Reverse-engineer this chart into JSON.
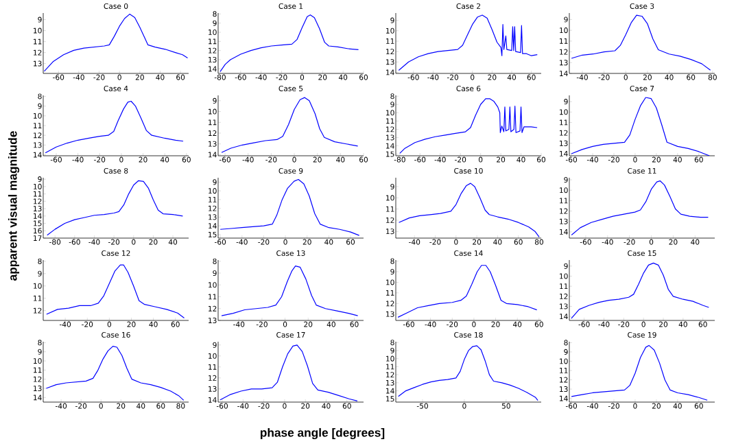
{
  "chart_data": [
    {
      "type": "line",
      "title": "Case 0",
      "color": "#0000ff",
      "xlim": [
        -75,
        68
      ],
      "ylim": [
        13.9,
        8.4
      ],
      "xticks": [
        -60,
        -40,
        -20,
        0,
        20,
        40,
        60
      ],
      "yticks": [
        9,
        10,
        11,
        12,
        13
      ],
      "x": [
        -74,
        -65,
        -55,
        -45,
        -35,
        -25,
        -15,
        -10,
        -5,
        0,
        5,
        10,
        15,
        20,
        25,
        28,
        35,
        45,
        55,
        62,
        67
      ],
      "values": [
        13.7,
        12.8,
        12.2,
        11.8,
        11.6,
        11.5,
        11.4,
        11.3,
        10.5,
        9.6,
        8.9,
        8.5,
        8.8,
        9.7,
        10.7,
        11.3,
        11.5,
        11.7,
        12.0,
        12.2,
        12.5
      ]
    },
    {
      "type": "line",
      "title": "Case 1",
      "color": "#0000ff",
      "xlim": [
        -82,
        60
      ],
      "ylim": [
        14.5,
        7.9
      ],
      "xticks": [
        -80,
        -60,
        -40,
        -20,
        0,
        20,
        40,
        60
      ],
      "yticks": [
        8,
        9,
        10,
        11,
        12,
        13,
        14
      ],
      "x": [
        -80,
        -75,
        -70,
        -60,
        -50,
        -40,
        -30,
        -20,
        -10,
        -5,
        0,
        5,
        8,
        12,
        17,
        22,
        26,
        35,
        45,
        55
      ],
      "values": [
        14.3,
        13.5,
        13.0,
        12.4,
        12.0,
        11.7,
        11.5,
        11.4,
        11.3,
        10.8,
        9.5,
        8.3,
        8.1,
        8.4,
        9.6,
        11.1,
        11.5,
        11.6,
        11.8,
        11.9
      ]
    },
    {
      "type": "line",
      "title": "Case 2",
      "color": "#0000ff",
      "xlim": [
        -78,
        70
      ],
      "ylim": [
        14.1,
        8.3
      ],
      "xticks": [
        -60,
        -40,
        -20,
        0,
        20,
        40,
        60
      ],
      "yticks": [
        9,
        10,
        11,
        12,
        13,
        14
      ],
      "x": [
        -75,
        -65,
        -55,
        -45,
        -35,
        -25,
        -15,
        -10,
        -5,
        0,
        5,
        10,
        15,
        20,
        25,
        29,
        30,
        31,
        32,
        34,
        35,
        40,
        41,
        42,
        43,
        44,
        49,
        50,
        51,
        55,
        60,
        66
      ],
      "values": [
        13.8,
        13.0,
        12.5,
        12.2,
        12.0,
        11.9,
        11.8,
        11.4,
        10.4,
        9.4,
        8.7,
        8.5,
        8.8,
        9.9,
        11.1,
        11.6,
        12.4,
        9.4,
        11.8,
        10.5,
        11.8,
        11.9,
        9.6,
        11.9,
        9.6,
        12.0,
        12.1,
        9.5,
        12.2,
        12.2,
        12.4,
        12.3
      ]
    },
    {
      "type": "line",
      "title": "Case 3",
      "color": "#0000ff",
      "xlim": [
        -52,
        82
      ],
      "ylim": [
        14,
        8.4
      ],
      "xticks": [
        -40,
        -20,
        0,
        20,
        40,
        60,
        80
      ],
      "yticks": [
        9,
        10,
        11,
        12,
        13,
        14
      ],
      "x": [
        -50,
        -40,
        -30,
        -20,
        -10,
        -5,
        0,
        5,
        10,
        15,
        20,
        25,
        30,
        40,
        50,
        60,
        70,
        78
      ],
      "values": [
        12.6,
        12.3,
        12.2,
        12.0,
        11.9,
        11.4,
        10.4,
        9.3,
        8.6,
        8.7,
        9.4,
        10.8,
        11.8,
        12.2,
        12.4,
        12.7,
        13.1,
        13.7
      ]
    },
    {
      "type": "line",
      "title": "Case 4",
      "color": "#0000ff",
      "xlim": [
        -72,
        62
      ],
      "ylim": [
        14.1,
        7.9
      ],
      "xticks": [
        -60,
        -40,
        -20,
        0,
        20,
        40,
        60
      ],
      "yticks": [
        8,
        9,
        10,
        11,
        12,
        13,
        14
      ],
      "x": [
        -70,
        -60,
        -50,
        -40,
        -30,
        -20,
        -12,
        -7,
        -3,
        2,
        6,
        9,
        13,
        18,
        23,
        28,
        40,
        50,
        57
      ],
      "values": [
        13.8,
        13.2,
        12.8,
        12.5,
        12.3,
        12.1,
        12.0,
        11.6,
        10.5,
        9.3,
        8.6,
        8.5,
        9.0,
        10.2,
        11.5,
        12.0,
        12.3,
        12.5,
        12.6
      ]
    },
    {
      "type": "line",
      "title": "Case 5",
      "color": "#0000ff",
      "xlim": [
        -66,
        60
      ],
      "ylim": [
        14.1,
        8.5
      ],
      "xticks": [
        -60,
        -40,
        -20,
        0,
        20,
        40,
        60
      ],
      "yticks": [
        9,
        10,
        11,
        12,
        13,
        14
      ],
      "x": [
        -63,
        -55,
        -45,
        -35,
        -25,
        -15,
        -10,
        -5,
        0,
        5,
        9,
        13,
        18,
        22,
        26,
        35,
        45,
        55
      ],
      "values": [
        13.8,
        13.4,
        13.1,
        12.9,
        12.7,
        12.6,
        12.3,
        11.2,
        9.8,
        8.9,
        8.7,
        9.0,
        10.2,
        11.6,
        12.4,
        12.8,
        13.0,
        13.2
      ]
    },
    {
      "type": "line",
      "title": "Case 6",
      "color": "#0000ff",
      "xlim": [
        -84,
        60
      ],
      "ylim": [
        15.2,
        7.9
      ],
      "xticks": [
        -80,
        -60,
        -40,
        -20,
        0,
        20,
        40,
        60
      ],
      "yticks": [
        8,
        9,
        10,
        11,
        12,
        13,
        14,
        15
      ],
      "x": [
        -80,
        -75,
        -65,
        -55,
        -45,
        -35,
        -25,
        -15,
        -10,
        -5,
        0,
        5,
        9,
        13,
        17,
        19,
        19.5,
        21,
        23,
        24,
        25,
        28,
        29,
        30,
        33,
        34,
        35,
        39,
        40,
        41,
        43,
        50,
        56
      ],
      "values": [
        14.9,
        14.3,
        13.6,
        13.2,
        12.9,
        12.7,
        12.5,
        12.3,
        11.8,
        10.3,
        9.0,
        8.3,
        8.3,
        8.6,
        9.3,
        10.0,
        12.4,
        11.6,
        12.3,
        9.3,
        12.2,
        12.0,
        9.3,
        12.3,
        12.0,
        9.2,
        12.4,
        12.2,
        9.3,
        12.4,
        11.7,
        11.7,
        11.8
      ]
    },
    {
      "type": "line",
      "title": "Case 7",
      "color": "#0000ff",
      "xlim": [
        -62,
        75
      ],
      "ylim": [
        14.2,
        8.4
      ],
      "xticks": [
        -60,
        -40,
        -20,
        0,
        20,
        40,
        60
      ],
      "yticks": [
        9,
        10,
        11,
        12,
        13,
        14
      ],
      "x": [
        -60,
        -50,
        -40,
        -30,
        -20,
        -10,
        -5,
        0,
        5,
        10,
        15,
        20,
        25,
        30,
        40,
        50,
        60,
        70
      ],
      "values": [
        14.0,
        13.6,
        13.3,
        13.1,
        13.0,
        12.9,
        12.2,
        10.7,
        9.4,
        8.6,
        8.7,
        9.6,
        11.2,
        12.9,
        13.3,
        13.5,
        13.8,
        14.2
      ]
    },
    {
      "type": "line",
      "title": "Case 8",
      "ylabel": "apparent visual magnitude",
      "color": "#0000ff",
      "xlim": [
        -92,
        56
      ],
      "ylim": [
        17,
        8.8
      ],
      "xticks": [
        -80,
        -60,
        -40,
        -20,
        0,
        20,
        40
      ],
      "yticks": [
        9,
        10,
        11,
        12,
        13,
        14,
        15,
        16,
        17
      ],
      "x": [
        -88,
        -80,
        -70,
        -60,
        -50,
        -40,
        -30,
        -20,
        -15,
        -10,
        -5,
        0,
        5,
        10,
        15,
        20,
        25,
        30,
        40,
        50
      ],
      "values": [
        16.6,
        15.8,
        15.0,
        14.5,
        14.2,
        13.9,
        13.8,
        13.6,
        13.4,
        12.5,
        11.0,
        9.8,
        9.2,
        9.3,
        10.2,
        11.8,
        13.2,
        13.7,
        13.8,
        14.0
      ]
    },
    {
      "type": "line",
      "title": "Case 9",
      "color": "#0000ff",
      "xlim": [
        -62,
        72
      ],
      "ylim": [
        15.4,
        8.5
      ],
      "xticks": [
        -60,
        -40,
        -20,
        0,
        20,
        40,
        60
      ],
      "yticks": [
        9,
        10,
        11,
        12,
        13,
        14,
        15
      ],
      "x": [
        -60,
        -50,
        -40,
        -30,
        -20,
        -12,
        -8,
        -3,
        2,
        8,
        12,
        17,
        22,
        27,
        32,
        40,
        50,
        60,
        68
      ],
      "values": [
        14.4,
        14.3,
        14.2,
        14.1,
        14.0,
        13.8,
        12.8,
        11.0,
        9.7,
        8.9,
        8.7,
        9.2,
        10.6,
        12.6,
        13.8,
        14.2,
        14.4,
        14.7,
        15.1
      ]
    },
    {
      "type": "line",
      "title": "Case 10",
      "color": "#0000ff",
      "xlim": [
        -58,
        82
      ],
      "ylim": [
        13.6,
        8.2
      ],
      "xticks": [
        -40,
        -20,
        0,
        20,
        40,
        60,
        80
      ],
      "yticks": [
        9,
        10,
        11,
        12,
        13
      ],
      "x": [
        -55,
        -45,
        -35,
        -25,
        -15,
        -5,
        0,
        5,
        10,
        14,
        18,
        23,
        28,
        32,
        40,
        50,
        60,
        70,
        76,
        80
      ],
      "values": [
        12.2,
        11.8,
        11.6,
        11.5,
        11.4,
        11.2,
        10.6,
        9.6,
        8.9,
        8.7,
        9.0,
        10.0,
        11.1,
        11.5,
        11.7,
        11.9,
        12.2,
        12.6,
        13.0,
        13.5
      ]
    },
    {
      "type": "line",
      "title": "Case 11",
      "color": "#0000ff",
      "xlim": [
        -75,
        58
      ],
      "ylim": [
        14.6,
        8.8
      ],
      "xticks": [
        -60,
        -40,
        -20,
        0,
        20,
        40
      ],
      "yticks": [
        9,
        10,
        11,
        12,
        13,
        14
      ],
      "x": [
        -73,
        -65,
        -55,
        -45,
        -35,
        -25,
        -15,
        -10,
        -5,
        0,
        5,
        8,
        12,
        17,
        22,
        27,
        35,
        45,
        52
      ],
      "values": [
        14.3,
        13.6,
        13.1,
        12.8,
        12.5,
        12.3,
        12.1,
        11.9,
        11.1,
        9.9,
        9.2,
        9.1,
        9.5,
        10.6,
        11.8,
        12.3,
        12.5,
        12.6,
        12.6
      ]
    },
    {
      "type": "line",
      "title": "Case 12",
      "color": "#0000ff",
      "xlim": [
        -60,
        72
      ],
      "ylim": [
        12.8,
        7.9
      ],
      "xticks": [
        -40,
        -20,
        0,
        20,
        40,
        60
      ],
      "yticks": [
        8,
        9,
        10,
        11,
        12
      ],
      "x": [
        -57,
        -47,
        -37,
        -27,
        -17,
        -10,
        -5,
        0,
        5,
        10,
        13,
        17,
        22,
        27,
        32,
        42,
        52,
        62,
        68
      ],
      "values": [
        12.3,
        11.9,
        11.8,
        11.6,
        11.6,
        11.4,
        10.8,
        9.8,
        8.8,
        8.3,
        8.3,
        8.9,
        10.0,
        11.2,
        11.5,
        11.7,
        11.9,
        12.2,
        12.6
      ]
    },
    {
      "type": "line",
      "title": "Case 13",
      "color": "#0000ff",
      "xlim": [
        -58,
        68
      ],
      "ylim": [
        13,
        7.9
      ],
      "xticks": [
        -40,
        -20,
        0,
        20,
        40,
        60
      ],
      "yticks": [
        8,
        9,
        10,
        11,
        12,
        13
      ],
      "x": [
        -55,
        -45,
        -35,
        -25,
        -15,
        -8,
        -3,
        2,
        6,
        9,
        13,
        18,
        23,
        27,
        35,
        45,
        55,
        63
      ],
      "values": [
        12.6,
        12.4,
        12.1,
        12.0,
        11.9,
        11.7,
        11.0,
        9.7,
        8.8,
        8.4,
        8.5,
        9.5,
        10.9,
        11.7,
        12.0,
        12.2,
        12.4,
        12.6
      ]
    },
    {
      "type": "line",
      "title": "Case 14",
      "color": "#0000ff",
      "xlim": [
        -72,
        62
      ],
      "ylim": [
        13.6,
        7.9
      ],
      "xticks": [
        -60,
        -40,
        -20,
        0,
        20,
        40,
        60
      ],
      "yticks": [
        8,
        9,
        10,
        11,
        12,
        13
      ],
      "x": [
        -70,
        -62,
        -52,
        -42,
        -32,
        -20,
        -12,
        -7,
        -2,
        3,
        7,
        11,
        15,
        20,
        25,
        30,
        40,
        50,
        58
      ],
      "values": [
        13.3,
        12.9,
        12.4,
        12.2,
        12.0,
        11.9,
        11.7,
        11.3,
        10.2,
        9.0,
        8.4,
        8.4,
        9.0,
        10.3,
        11.7,
        12.0,
        12.1,
        12.3,
        12.6
      ]
    },
    {
      "type": "line",
      "title": "Case 15",
      "color": "#0000ff",
      "xlim": [
        -75,
        72
      ],
      "ylim": [
        14.4,
        8.4
      ],
      "xticks": [
        -60,
        -40,
        -20,
        0,
        20,
        40,
        60
      ],
      "yticks": [
        9,
        10,
        11,
        12,
        13,
        14
      ],
      "x": [
        -73,
        -65,
        -55,
        -45,
        -35,
        -25,
        -15,
        -10,
        -5,
        0,
        5,
        10,
        15,
        20,
        25,
        30,
        40,
        50,
        60,
        66
      ],
      "values": [
        14.2,
        13.3,
        12.9,
        12.6,
        12.4,
        12.3,
        12.1,
        11.8,
        10.8,
        9.7,
        8.9,
        8.7,
        8.9,
        9.9,
        11.3,
        12.0,
        12.3,
        12.5,
        12.9,
        13.1
      ]
    },
    {
      "type": "line",
      "title": "Case 16",
      "color": "#0000ff",
      "xlim": [
        -58,
        88
      ],
      "ylim": [
        14.5,
        7.9
      ],
      "xticks": [
        -40,
        -20,
        0,
        20,
        40,
        60,
        80
      ],
      "yticks": [
        8,
        9,
        10,
        11,
        12,
        13,
        14
      ],
      "x": [
        -55,
        -45,
        -35,
        -25,
        -15,
        -8,
        -3,
        2,
        7,
        12,
        16,
        21,
        26,
        31,
        40,
        50,
        60,
        70,
        78,
        83
      ],
      "values": [
        13.0,
        12.6,
        12.4,
        12.3,
        12.2,
        11.9,
        11.0,
        9.8,
        8.9,
        8.4,
        8.5,
        9.4,
        10.8,
        12.0,
        12.4,
        12.6,
        12.9,
        13.3,
        13.8,
        14.3
      ]
    },
    {
      "type": "line",
      "title": "Case 17",
      "xlabel": "phase angle [degrees]",
      "color": "#0000ff",
      "xlim": [
        -64,
        76
      ],
      "ylim": [
        14.2,
        8.7
      ],
      "xticks": [
        -60,
        -40,
        -20,
        0,
        20,
        40,
        60
      ],
      "yticks": [
        9,
        10,
        11,
        12,
        13,
        14
      ],
      "x": [
        -62,
        -52,
        -42,
        -32,
        -22,
        -12,
        -7,
        -2,
        3,
        8,
        12,
        17,
        22,
        27,
        32,
        42,
        52,
        62,
        70
      ],
      "values": [
        14.0,
        13.5,
        13.2,
        13.0,
        13.0,
        12.9,
        12.4,
        11.0,
        9.8,
        9.1,
        9.0,
        9.6,
        10.9,
        12.5,
        13.1,
        13.3,
        13.6,
        13.9,
        14.1
      ]
    },
    {
      "type": "line",
      "title": "Case 18",
      "color": "#0000ff",
      "xlim": [
        -82,
        92
      ],
      "ylim": [
        15.4,
        7.9
      ],
      "xticks": [
        -50,
        0,
        50
      ],
      "yticks": [
        8,
        9,
        10,
        11,
        12,
        13,
        14,
        15
      ],
      "x": [
        -79,
        -70,
        -60,
        -50,
        -40,
        -30,
        -20,
        -10,
        -5,
        0,
        5,
        10,
        15,
        20,
        25,
        30,
        35,
        45,
        55,
        65,
        75,
        85,
        88
      ],
      "values": [
        14.7,
        14.0,
        13.6,
        13.2,
        12.9,
        12.7,
        12.6,
        12.4,
        11.6,
        10.1,
        9.0,
        8.5,
        8.4,
        8.9,
        10.3,
        12.0,
        12.8,
        13.0,
        13.3,
        13.7,
        14.2,
        14.8,
        15.2
      ]
    },
    {
      "type": "line",
      "title": "Case 19",
      "color": "#0000ff",
      "xlim": [
        -62,
        75
      ],
      "ylim": [
        14.4,
        7.9
      ],
      "xticks": [
        -60,
        -40,
        -20,
        0,
        20,
        40,
        60
      ],
      "yticks": [
        8,
        9,
        10,
        11,
        12,
        13,
        14
      ],
      "x": [
        -60,
        -50,
        -40,
        -30,
        -20,
        -10,
        -5,
        0,
        5,
        10,
        13,
        18,
        23,
        28,
        33,
        40,
        50,
        60,
        68
      ],
      "values": [
        13.8,
        13.6,
        13.4,
        13.3,
        13.2,
        13.1,
        12.6,
        11.3,
        9.6,
        8.5,
        8.3,
        8.8,
        10.2,
        12.0,
        13.1,
        13.4,
        13.6,
        13.9,
        14.2
      ]
    }
  ]
}
